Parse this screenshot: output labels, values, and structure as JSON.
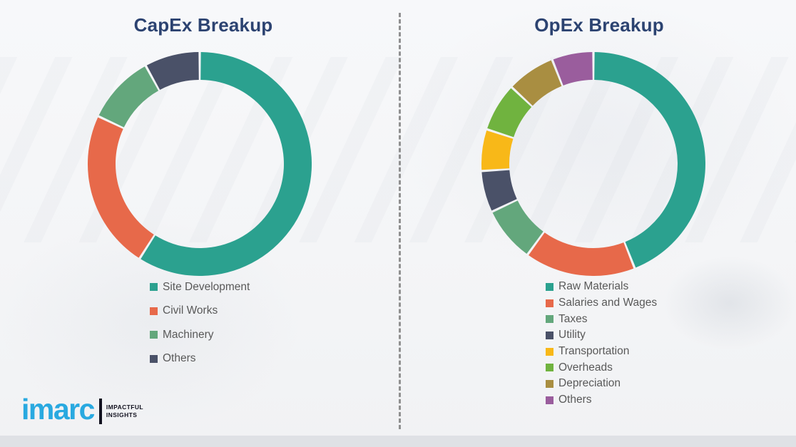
{
  "page": {
    "background_color": "#f5f6f8",
    "divider_color": "#7F7F7F",
    "title_color": "#2C4371",
    "legend_text_color": "#595959"
  },
  "chart_data": [
    {
      "type": "pie",
      "variant": "donut",
      "title": "CapEx Breakup",
      "legend_position": "below-chart-left",
      "units": "percent-of-total",
      "slices": [
        {
          "label": "Site Development",
          "value": 59,
          "color": "#2BA18F"
        },
        {
          "label": "Civil Works",
          "value": 23,
          "color": "#E7694A"
        },
        {
          "label": "Machinery",
          "value": 10,
          "color": "#63A77C"
        },
        {
          "label": "Others",
          "value": 8,
          "color": "#4A5168"
        }
      ]
    },
    {
      "type": "pie",
      "variant": "donut",
      "title": "OpEx Breakup",
      "legend_position": "below-chart-left",
      "units": "percent-of-total",
      "slices": [
        {
          "label": "Raw Materials",
          "value": 44,
          "color": "#2BA18F"
        },
        {
          "label": "Salaries and Wages",
          "value": 16,
          "color": "#E7694A"
        },
        {
          "label": "Taxes",
          "value": 8,
          "color": "#63A77C"
        },
        {
          "label": "Utility",
          "value": 6,
          "color": "#4A5168"
        },
        {
          "label": "Transportation",
          "value": 6,
          "color": "#F8B818"
        },
        {
          "label": "Overheads",
          "value": 7,
          "color": "#70B33F"
        },
        {
          "label": "Depreciation",
          "value": 7,
          "color": "#A98E41"
        },
        {
          "label": "Others",
          "value": 6,
          "color": "#9A5D9D"
        }
      ]
    }
  ],
  "branding": {
    "logo_text": "imarc",
    "logo_color": "#29A9E0",
    "tagline_line1": "IMPACTFUL",
    "tagline_line2": "INSIGHTS"
  }
}
